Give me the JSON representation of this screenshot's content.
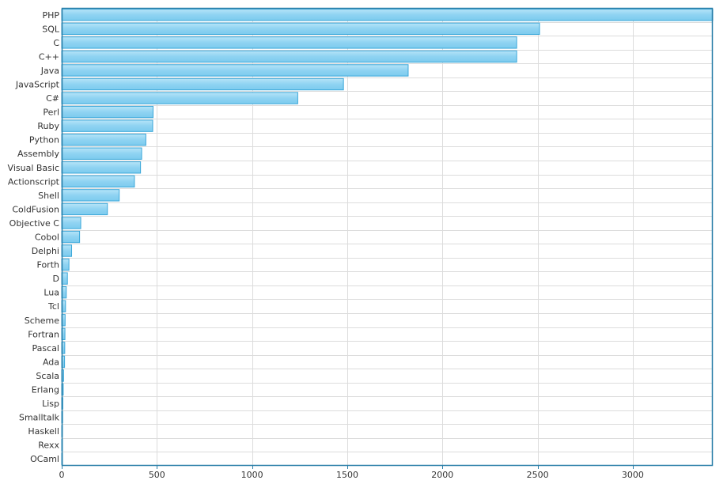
{
  "chart_data": {
    "type": "bar",
    "orientation": "horizontal",
    "categories": [
      "PHP",
      "SQL",
      "C",
      "C++",
      "Java",
      "JavaScript",
      "C#",
      "Perl",
      "Ruby",
      "Python",
      "Assembly",
      "Visual Basic",
      "Actionscript",
      "Shell",
      "ColdFusion",
      "Objective C",
      "Cobol",
      "Delphi",
      "Forth",
      "D",
      "Lua",
      "Tcl",
      "Scheme",
      "Fortran",
      "Pascal",
      "Ada",
      "Scala",
      "Erlang",
      "Lisp",
      "Smalltalk",
      "Haskell",
      "Rexx",
      "OCaml"
    ],
    "values": [
      3420,
      2510,
      2390,
      2390,
      1820,
      1480,
      1240,
      480,
      478,
      442,
      420,
      414,
      382,
      302,
      240,
      100,
      94,
      52,
      38,
      30,
      24,
      20,
      18,
      17,
      16,
      15,
      10,
      8,
      6,
      5,
      4,
      3,
      2
    ],
    "xlim": [
      0,
      3420
    ],
    "xticks": [
      0,
      500,
      1000,
      1500,
      2000,
      2500,
      3000
    ],
    "title": "",
    "xlabel": "",
    "ylabel": "",
    "grid": true,
    "colors": {
      "bar_fill": "#8fd3f2",
      "bar_stroke": "#3ba7d9",
      "axis": "#2a7fa8",
      "grid": "#dcdcdc"
    }
  }
}
